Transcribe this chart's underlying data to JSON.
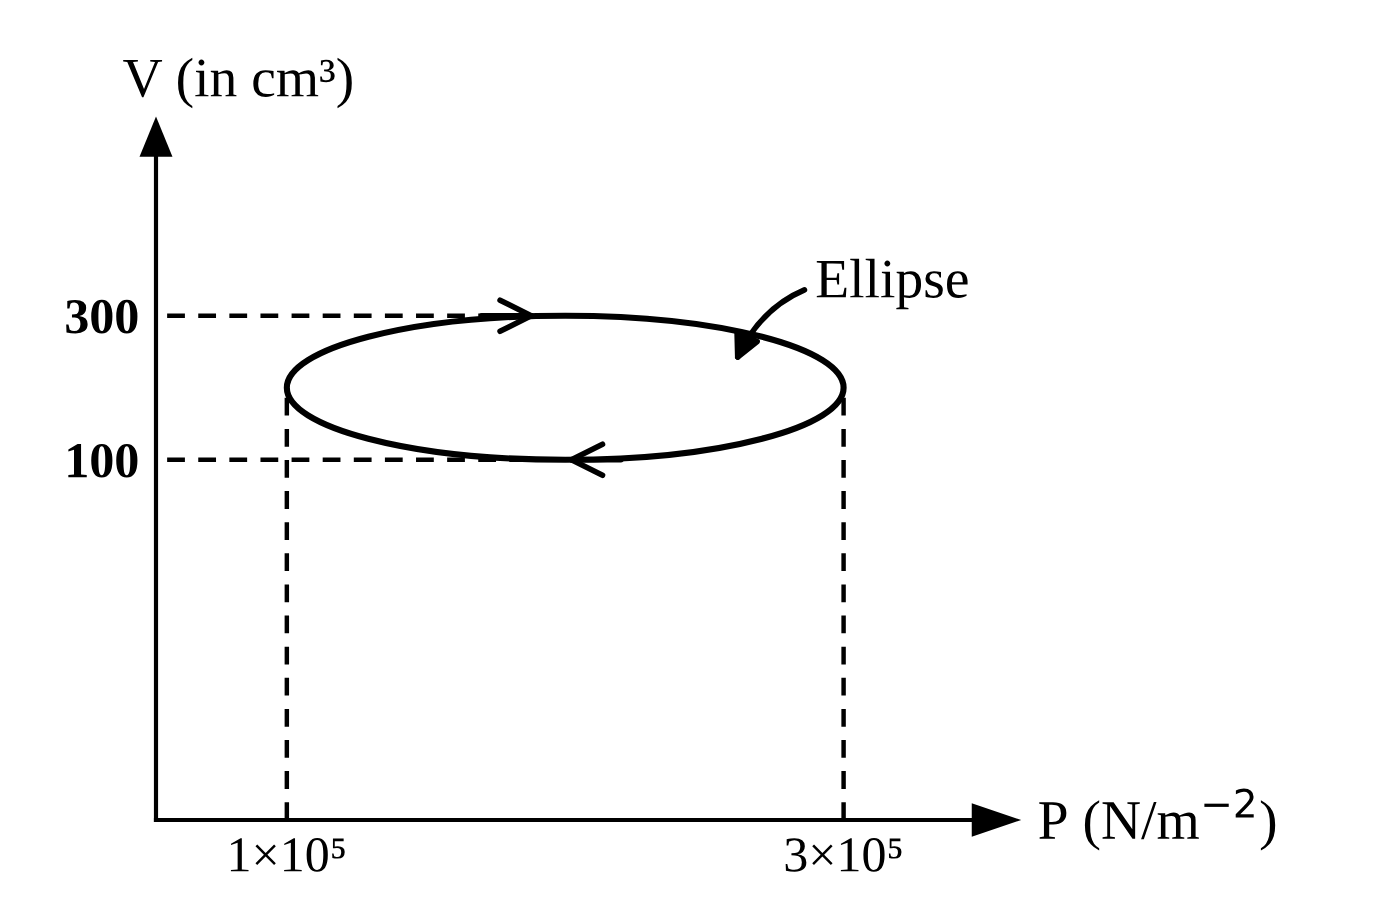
{
  "chart_data": {
    "type": "line",
    "xlabel": "P (N/m$^{−2}$)",
    "ylabel": "V (in cm³)",
    "xlim": [
      53000,
      349000
    ],
    "ylim": [
      -400,
      530
    ],
    "xticks": [
      {
        "value": 100000,
        "label": "1×10⁵"
      },
      {
        "value": 300000,
        "label": "3×10⁵"
      }
    ],
    "yticks": [
      100,
      300
    ],
    "grid": false,
    "marker": "none",
    "annotations": [
      "Ellipse"
    ],
    "series": [
      {
        "color": "#000000",
        "line_style": "dashed",
        "x": [
          57000,
          200000
        ],
        "values": [
          300,
          300
        ]
      },
      {
        "color": "#000000",
        "line_style": "dashed",
        "x": [
          57000,
          200000
        ],
        "values": [
          100,
          100
        ]
      },
      {
        "color": "#000000",
        "line_style": "dashed",
        "x": [
          100000,
          100000
        ],
        "values": [
          -400,
          200
        ]
      },
      {
        "color": "#000000",
        "line_style": "dashed",
        "x": [
          300000,
          300000
        ],
        "values": [
          -400,
          200
        ]
      }
    ]
  }
}
